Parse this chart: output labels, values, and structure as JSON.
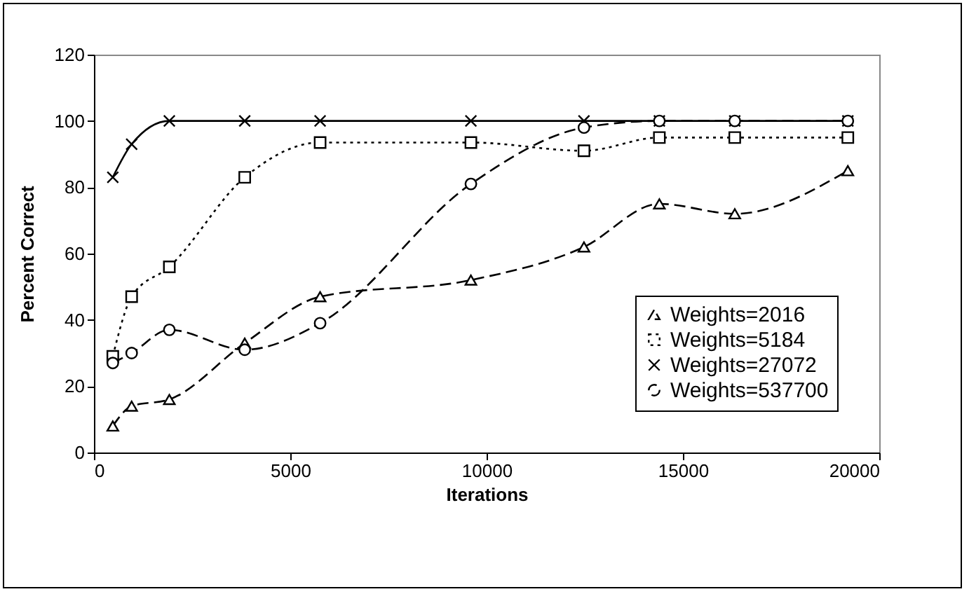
{
  "chart_data": {
    "type": "line",
    "xlabel": "Iterations",
    "ylabel": "Percent Correct",
    "x": [
      480,
      960,
      1920,
      3840,
      5760,
      9600,
      12480,
      14400,
      16320,
      19200
    ],
    "series": [
      {
        "name": "Weights=2016",
        "color": "#000000",
        "marker": "triangle",
        "line_style": "dashed",
        "values": [
          8,
          14,
          16,
          33,
          47,
          52,
          62,
          75,
          72,
          85
        ]
      },
      {
        "name": "Weights=5184",
        "color": "#000000",
        "marker": "square",
        "line_style": "dotted",
        "values": [
          29,
          47,
          56,
          83,
          93.5,
          93.5,
          91,
          95,
          95,
          95
        ]
      },
      {
        "name": "Weights=27072",
        "color": "#000000",
        "marker": "cross",
        "line_style": "solid",
        "values": [
          83,
          93,
          100,
          100,
          100,
          100,
          100,
          100,
          100,
          100
        ]
      },
      {
        "name": "Weights=537700",
        "color": "#000000",
        "marker": "circle",
        "line_style": "dashed",
        "values": [
          27,
          30,
          37,
          31,
          39,
          81,
          98,
          100,
          100,
          100
        ]
      }
    ],
    "xlim": [
      0,
      20000
    ],
    "xticks": [
      0,
      5000,
      10000,
      15000,
      20000
    ],
    "ylim": [
      0,
      120
    ],
    "yticks": [
      0,
      20,
      40,
      60,
      80,
      100,
      120
    ],
    "grid": false,
    "legend": "bottom right"
  }
}
